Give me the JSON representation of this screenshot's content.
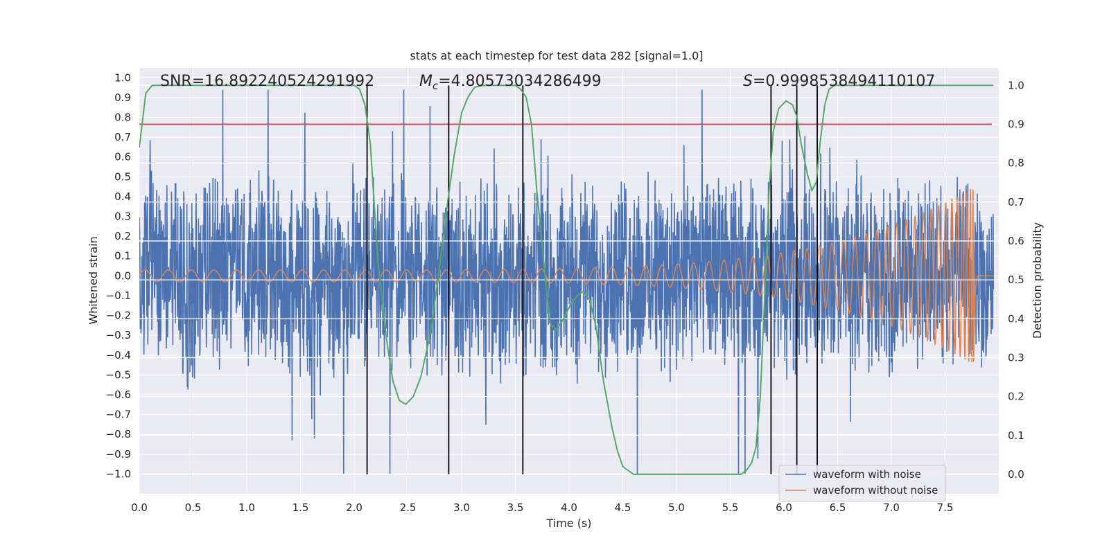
{
  "chart_data": {
    "type": "line",
    "title": "stats at each timestep for test data 282 [signal=1.0]",
    "xlabel": "Time (s)",
    "ylabel_left": "Whitened strain",
    "ylabel_right": "Detection probability",
    "xlim": [
      0.0,
      8.0
    ],
    "ylim_left": [
      -1.1,
      1.05
    ],
    "ylim_right": [
      -0.05,
      1.045
    ],
    "x_ticks": [
      "0.0",
      "0.5",
      "1.0",
      "1.5",
      "2.0",
      "2.5",
      "3.0",
      "3.5",
      "4.0",
      "4.5",
      "5.0",
      "5.5",
      "6.0",
      "6.5",
      "7.0",
      "7.5"
    ],
    "y_ticks_left": [
      "1.0",
      "0.9",
      "0.8",
      "0.7",
      "0.6",
      "0.5",
      "0.4",
      "0.3",
      "0.2",
      "0.1",
      "0.0",
      "-0.1",
      "-0.2",
      "-0.3",
      "-0.4",
      "-0.5",
      "-0.6",
      "-0.7",
      "-0.8",
      "-0.9",
      "-1.0"
    ],
    "y_ticks_right": [
      "1.0",
      "0.9",
      "0.8",
      "0.7",
      "0.6",
      "0.5",
      "0.4",
      "0.3",
      "0.2",
      "0.1",
      "0.0"
    ],
    "annotations": {
      "snr": "SNR=16.892240524291992",
      "mc_symbol": "M",
      "mc_sub": "c",
      "mc_value": "=4.80573034286499",
      "s_symbol": "S",
      "s_value": "=0.999853849411​0107"
    },
    "threshold": {
      "value": 0.9,
      "color": "#c44e52"
    },
    "vertical_lines_x": [
      2.12,
      2.88,
      3.57,
      5.88,
      6.12,
      6.31
    ],
    "series": [
      {
        "name": "waveform with noise",
        "color": "#4c72b0",
        "description": "whitened noisy strain, roughly +/-0.5 with spikes to +/-1.0"
      },
      {
        "name": "waveform without noise",
        "color": "#dd8452",
        "description": "chirp amplitude growing from 0.03 to 0.45 at t=7.77 s, then ~0"
      },
      {
        "name": "detection probability",
        "color": "#55a868",
        "x": [
          0.0,
          0.06,
          0.12,
          0.2,
          0.4,
          0.8,
          1.2,
          1.6,
          1.9,
          2.0,
          2.05,
          2.1,
          2.15,
          2.22,
          2.3,
          2.36,
          2.42,
          2.48,
          2.55,
          2.62,
          2.7,
          2.78,
          2.86,
          2.93,
          3.0,
          3.06,
          3.12,
          3.2,
          3.3,
          3.4,
          3.5,
          3.55,
          3.6,
          3.65,
          3.7,
          3.76,
          3.82,
          3.88,
          3.95,
          4.02,
          4.08,
          4.13,
          4.19,
          4.25,
          4.32,
          4.4,
          4.45,
          4.5,
          4.6,
          4.8,
          5.0,
          5.2,
          5.4,
          5.6,
          5.65,
          5.7,
          5.74,
          5.78,
          5.82,
          5.86,
          5.9,
          5.95,
          6.02,
          6.08,
          6.12,
          6.16,
          6.22,
          6.26,
          6.3,
          6.34,
          6.38,
          6.42,
          6.47,
          6.55,
          7.0,
          7.5,
          7.95
        ],
        "values": [
          0.84,
          0.98,
          1.0,
          1.0,
          1.0,
          1.0,
          1.0,
          1.0,
          1.0,
          1.0,
          0.99,
          0.95,
          0.85,
          0.55,
          0.35,
          0.24,
          0.19,
          0.18,
          0.2,
          0.25,
          0.35,
          0.5,
          0.68,
          0.82,
          0.93,
          0.97,
          0.995,
          1.0,
          1.0,
          1.0,
          1.0,
          0.99,
          0.97,
          0.9,
          0.73,
          0.56,
          0.39,
          0.37,
          0.4,
          0.44,
          0.46,
          0.47,
          0.45,
          0.38,
          0.24,
          0.12,
          0.06,
          0.02,
          0.0,
          0.0,
          0.0,
          0.0,
          0.0,
          0.0,
          0.01,
          0.03,
          0.07,
          0.2,
          0.45,
          0.72,
          0.88,
          0.94,
          0.96,
          0.95,
          0.92,
          0.85,
          0.77,
          0.73,
          0.75,
          0.86,
          0.95,
          0.99,
          1.0,
          1.0,
          1.0,
          1.0,
          1.0
        ]
      }
    ],
    "legend": {
      "placement": "lower-right",
      "entries": [
        "waveform with noise",
        "waveform without noise"
      ]
    }
  }
}
